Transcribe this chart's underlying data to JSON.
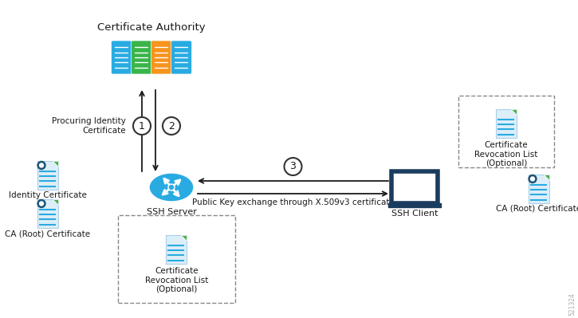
{
  "title": "Certificate Authority",
  "bg_color": "#ffffff",
  "text_color": "#1a1a1a",
  "arrow_color": "#1a1a1a",
  "ca_color_blue": "#29abe2",
  "ca_color_green": "#39b54a",
  "ca_color_orange": "#f7941d",
  "server_color": "#29abe2",
  "client_color": "#1a3c5e",
  "cert_border_color": "#29abe2",
  "cert_fill_color": "#e8f5fd",
  "cert_line_color": "#29abe2",
  "cert_badge_color": "#1a5276",
  "cert_green_color": "#4caf50",
  "dashed_border_color": "#888888",
  "label_procuring": "Procuring Identity\nCertificate",
  "label_identity_cert": "Identity Certificate",
  "label_ca_root_left": "CA (Root) Certificate",
  "label_ssh_server": "SSH Server",
  "label_ssh_client": "SSH Client",
  "label_ca_root_right": "CA (Root) Certificate",
  "label_crl_right": "Certificate\nRevocation List\n(Optional)",
  "label_crl_bottom": "Certificate\nRevocation List\n(Optional)",
  "label_arrow3": "Public Key exchange through X.509v3 certificate",
  "watermark": "521324",
  "figw": 7.25,
  "figh": 3.99,
  "dpi": 100
}
